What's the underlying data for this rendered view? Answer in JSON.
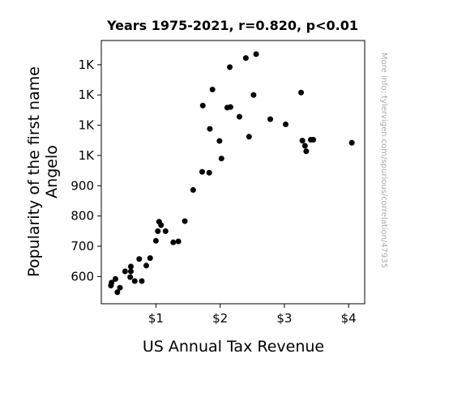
{
  "chart_data": {
    "type": "scatter",
    "title": "Years 1975-2021, r=0.820, p<0.01",
    "xlabel": "US Annual Tax Revenue",
    "ylabel_lines": [
      "Popularity of the first name",
      "Angelo"
    ],
    "xlim": [
      0.15,
      4.25
    ],
    "ylim": [
      510,
      1380
    ],
    "x_ticks": [
      {
        "value": 1,
        "label": "$1"
      },
      {
        "value": 2,
        "label": "$2"
      },
      {
        "value": 3,
        "label": "$3"
      },
      {
        "value": 4,
        "label": "$4"
      }
    ],
    "y_ticks": [
      {
        "value": 600,
        "label": "600"
      },
      {
        "value": 700,
        "label": "700"
      },
      {
        "value": 800,
        "label": "800"
      },
      {
        "value": 900,
        "label": "900"
      },
      {
        "value": 1000,
        "label": "1K"
      },
      {
        "value": 1100,
        "label": "1K"
      },
      {
        "value": 1200,
        "label": "1K"
      },
      {
        "value": 1300,
        "label": "1K"
      }
    ],
    "grid": false,
    "marker_color": "#000000",
    "points": [
      [
        0.3,
        570
      ],
      [
        0.31,
        580
      ],
      [
        0.37,
        592
      ],
      [
        0.4,
        548
      ],
      [
        0.44,
        563
      ],
      [
        0.52,
        617
      ],
      [
        0.6,
        598
      ],
      [
        0.61,
        617
      ],
      [
        0.61,
        633
      ],
      [
        0.67,
        585
      ],
      [
        0.74,
        658
      ],
      [
        0.78,
        585
      ],
      [
        0.85,
        636
      ],
      [
        0.91,
        661
      ],
      [
        1.0,
        718
      ],
      [
        1.03,
        750
      ],
      [
        1.05,
        781
      ],
      [
        1.08,
        770
      ],
      [
        1.15,
        750
      ],
      [
        1.27,
        713
      ],
      [
        1.35,
        716
      ],
      [
        1.45,
        783
      ],
      [
        1.58,
        886
      ],
      [
        1.72,
        946
      ],
      [
        1.83,
        943
      ],
      [
        2.02,
        990
      ],
      [
        1.99,
        1048
      ],
      [
        1.84,
        1088
      ],
      [
        2.45,
        1062
      ],
      [
        1.73,
        1165
      ],
      [
        1.88,
        1218
      ],
      [
        2.11,
        1158
      ],
      [
        2.16,
        1160
      ],
      [
        2.3,
        1128
      ],
      [
        2.52,
        1200
      ],
      [
        2.15,
        1292
      ],
      [
        2.4,
        1322
      ],
      [
        2.56,
        1335
      ],
      [
        2.78,
        1120
      ],
      [
        3.02,
        1103
      ],
      [
        3.26,
        1208
      ],
      [
        3.28,
        1049
      ],
      [
        3.32,
        1032
      ],
      [
        3.34,
        1014
      ],
      [
        3.41,
        1052
      ],
      [
        3.45,
        1052
      ],
      [
        4.05,
        1042
      ]
    ],
    "side_note": "More info: tylervigen.com/spurious/correlation/47935"
  }
}
